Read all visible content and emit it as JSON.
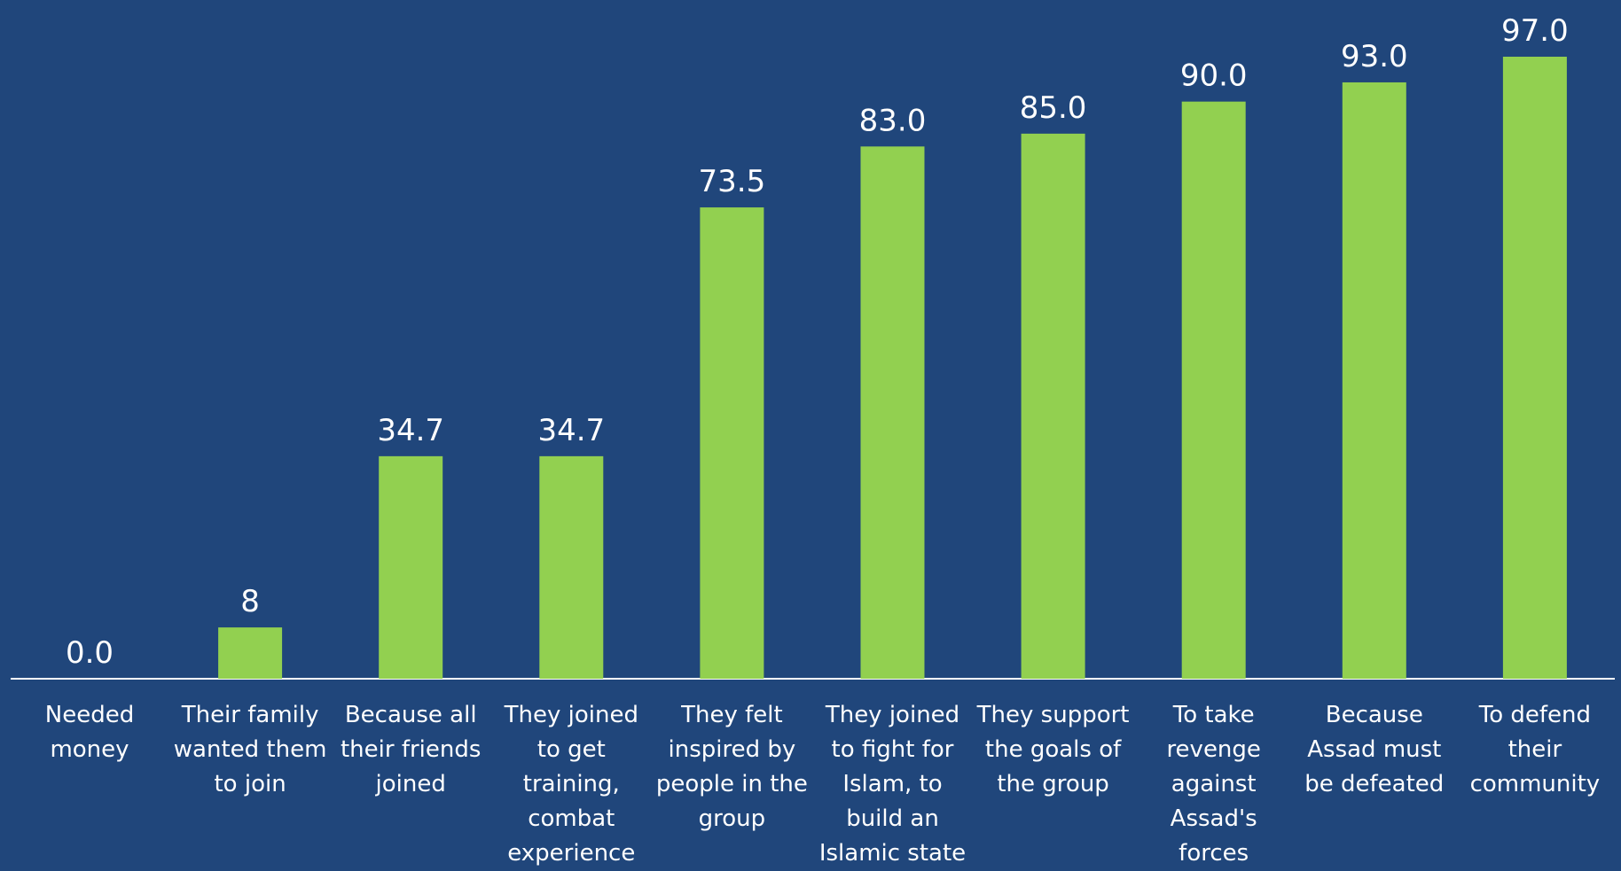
{
  "chart_data": {
    "type": "bar",
    "categories": [
      "Needed money",
      "Their family wanted them to join",
      "Because all their friends joined",
      "They joined to get training, combat experience",
      "They felt inspired by people in the group",
      "They joined to fight for Islam, to build an Islamic state",
      "They support the goals of the group",
      "To take revenge against Assad's forces",
      "Because Assad must be defeated",
      "To defend their community"
    ],
    "values": [
      0,
      8,
      34.7,
      34.7,
      73.5,
      83,
      85,
      90,
      93,
      97
    ],
    "value_labels": [
      "0.0",
      "8",
      "34.7",
      "34.7",
      "73.5",
      "83.0",
      "85.0",
      "90.0",
      "93.0",
      "97.0"
    ],
    "color": "#92d050"
  }
}
